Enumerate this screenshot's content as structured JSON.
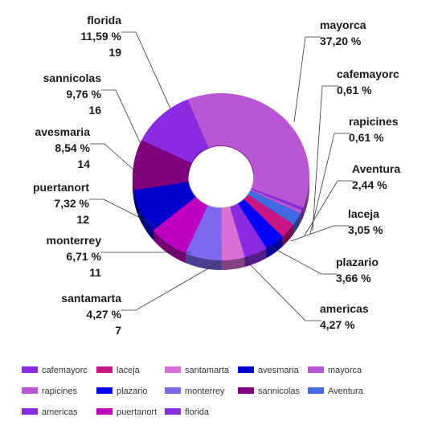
{
  "chart_data": {
    "type": "pie",
    "variant": "3d-donut",
    "slices": [
      {
        "name": "mayorca",
        "percent_label": "37,20 %",
        "value": null,
        "percent": 37.2,
        "color": "#BA55D3"
      },
      {
        "name": "cafemayorc",
        "percent_label": "0,61 %",
        "value": null,
        "percent": 0.61,
        "color": "#8A2BE2"
      },
      {
        "name": "rapicines",
        "percent_label": "0,61 %",
        "value": null,
        "percent": 0.61,
        "color": "#BA55D3"
      },
      {
        "name": "Aventura",
        "percent_label": "2,44 %",
        "value": null,
        "percent": 2.44,
        "color": "#4169E1"
      },
      {
        "name": "laceja",
        "percent_label": "3,05 %",
        "value": null,
        "percent": 3.05,
        "color": "#C71585"
      },
      {
        "name": "plazario",
        "percent_label": "3,66 %",
        "value": null,
        "percent": 3.66,
        "color": "#0000FF"
      },
      {
        "name": "americas",
        "percent_label": "4,27 %",
        "value": null,
        "percent": 4.27,
        "color": "#8A2BE2"
      },
      {
        "name": "santamarta",
        "percent_label": "4,27 %",
        "value": 7,
        "percent": 4.27,
        "color": "#DA70D6"
      },
      {
        "name": "monterrey",
        "percent_label": "6,71 %",
        "value": 11,
        "percent": 6.71,
        "color": "#7B68EE"
      },
      {
        "name": "puertanort",
        "percent_label": "7,32 %",
        "value": 12,
        "percent": 7.32,
        "color": "#C000C0"
      },
      {
        "name": "avesmaria",
        "percent_label": "8,54 %",
        "value": 14,
        "percent": 8.54,
        "color": "#0000CD"
      },
      {
        "name": "sannicolas",
        "percent_label": "9,76 %",
        "value": 16,
        "percent": 9.76,
        "color": "#800080"
      },
      {
        "name": "florida",
        "percent_label": "11,59 %",
        "value": 19,
        "percent": 11.59,
        "color": "#8A2BE2"
      }
    ],
    "legend": {
      "placement": "bottom",
      "items": [
        {
          "name": "cafemayorc",
          "color": "#8A2BE2"
        },
        {
          "name": "laceja",
          "color": "#C71585"
        },
        {
          "name": "santamarta",
          "color": "#DA70D6"
        },
        {
          "name": "avesmaria",
          "color": "#0000CD"
        },
        {
          "name": "mayorca",
          "color": "#BA55D3"
        },
        {
          "name": "rapicines",
          "color": "#BA55D3"
        },
        {
          "name": "plazario",
          "color": "#0000FF"
        },
        {
          "name": "monterrey",
          "color": "#7B68EE"
        },
        {
          "name": "sannicolas",
          "color": "#800080"
        },
        {
          "name": "Aventura",
          "color": "#4169E1"
        },
        {
          "name": "americas",
          "color": "#8A2BE2"
        },
        {
          "name": "puertanort",
          "color": "#C000C0"
        },
        {
          "name": "florida",
          "color": "#8A2BE2"
        }
      ]
    }
  }
}
